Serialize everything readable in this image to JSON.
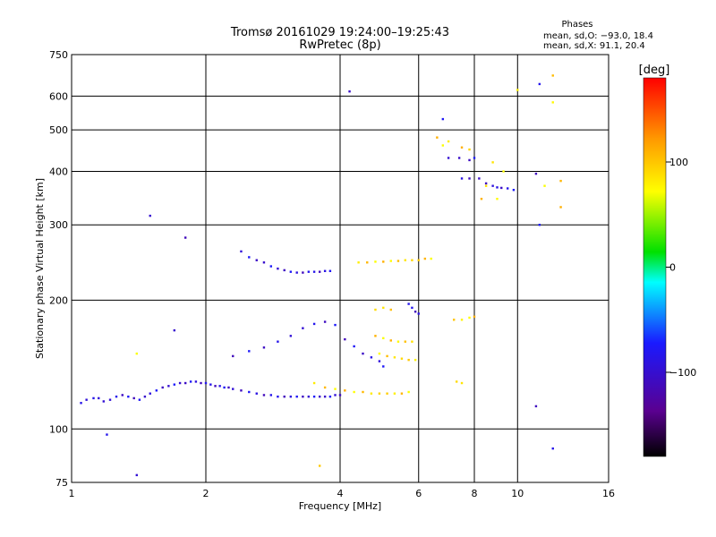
{
  "chart_data": {
    "type": "scatter",
    "title": "Tromsø 20161029 19:24:00–19:25:43",
    "subtitle": "RwPretec (8p)",
    "stats_title": "Phases",
    "stats_lines": [
      "mean, sd,O: −93.0, 18.4",
      "mean, sd,X:  91.1, 20.4"
    ],
    "xlabel": "Frequency [MHz]",
    "ylabel": "Stationary phase Virtual Height [km]",
    "x_scale": "log",
    "y_scale": "log",
    "xlim": [
      1,
      16
    ],
    "ylim": [
      75,
      750
    ],
    "xticks": [
      1,
      2,
      4,
      6,
      8,
      10,
      16
    ],
    "xtick_labels": [
      "1",
      "2",
      "4",
      "6",
      "8",
      "10",
      "16"
    ],
    "yticks": [
      75,
      100,
      200,
      300,
      400,
      500,
      600,
      750
    ],
    "ytick_labels": [
      "75",
      "100",
      "200",
      "300",
      "400",
      "500",
      "600",
      "750"
    ],
    "grid": true,
    "colorbar": {
      "label": "[deg]",
      "range": [
        -180,
        180
      ],
      "ticks": [
        100,
        0,
        -100
      ],
      "tick_labels": [
        "100",
        "0",
        "−100"
      ],
      "colormap": "rainbow",
      "stops": [
        "#000000",
        "#5a0090",
        "#1a1aff",
        "#00ffff",
        "#00e000",
        "#ffff00",
        "#ff9800",
        "#ff0000"
      ]
    },
    "series": [
      {
        "name": "O",
        "phase_mean": -93.0,
        "phase_sd": 18.4,
        "points": [
          [
            1.05,
            115
          ],
          [
            1.08,
            117
          ],
          [
            1.12,
            118
          ],
          [
            1.15,
            118
          ],
          [
            1.18,
            116
          ],
          [
            1.22,
            117
          ],
          [
            1.26,
            119
          ],
          [
            1.3,
            120
          ],
          [
            1.34,
            119
          ],
          [
            1.38,
            118
          ],
          [
            1.42,
            117
          ],
          [
            1.46,
            119
          ],
          [
            1.5,
            121
          ],
          [
            1.55,
            123
          ],
          [
            1.6,
            125
          ],
          [
            1.65,
            126
          ],
          [
            1.7,
            127
          ],
          [
            1.75,
            128
          ],
          [
            1.8,
            128
          ],
          [
            1.85,
            129
          ],
          [
            1.9,
            129
          ],
          [
            1.95,
            128
          ],
          [
            2.0,
            128
          ],
          [
            2.05,
            127
          ],
          [
            2.1,
            126
          ],
          [
            2.15,
            126
          ],
          [
            2.2,
            125
          ],
          [
            2.25,
            125
          ],
          [
            2.3,
            124
          ],
          [
            2.4,
            123
          ],
          [
            2.5,
            122
          ],
          [
            2.6,
            121
          ],
          [
            2.7,
            120
          ],
          [
            2.8,
            120
          ],
          [
            2.9,
            119
          ],
          [
            3.0,
            119
          ],
          [
            3.1,
            119
          ],
          [
            3.2,
            119
          ],
          [
            3.3,
            119
          ],
          [
            3.4,
            119
          ],
          [
            3.5,
            119
          ],
          [
            3.6,
            119
          ],
          [
            3.7,
            119
          ],
          [
            3.8,
            119
          ],
          [
            3.9,
            120
          ],
          [
            4.0,
            120
          ],
          [
            2.4,
            260
          ],
          [
            2.5,
            252
          ],
          [
            2.6,
            248
          ],
          [
            2.7,
            245
          ],
          [
            2.8,
            240
          ],
          [
            2.9,
            237
          ],
          [
            3.0,
            235
          ],
          [
            3.1,
            233
          ],
          [
            3.2,
            232
          ],
          [
            3.3,
            232
          ],
          [
            3.4,
            233
          ],
          [
            3.5,
            233
          ],
          [
            3.6,
            233
          ],
          [
            3.7,
            234
          ],
          [
            3.8,
            234
          ],
          [
            2.3,
            148
          ],
          [
            2.5,
            152
          ],
          [
            2.7,
            155
          ],
          [
            2.9,
            160
          ],
          [
            3.1,
            165
          ],
          [
            3.3,
            172
          ],
          [
            3.5,
            176
          ],
          [
            3.7,
            178
          ],
          [
            3.9,
            175
          ],
          [
            4.1,
            162
          ],
          [
            4.3,
            156
          ],
          [
            4.5,
            150
          ],
          [
            4.7,
            147
          ],
          [
            4.9,
            144
          ],
          [
            5.0,
            140
          ],
          [
            5.7,
            196
          ],
          [
            5.8,
            192
          ],
          [
            5.9,
            188
          ],
          [
            6.0,
            186
          ],
          [
            7.0,
            430
          ],
          [
            7.4,
            430
          ],
          [
            7.8,
            425
          ],
          [
            8.0,
            430
          ],
          [
            7.5,
            385
          ],
          [
            7.8,
            385
          ],
          [
            8.2,
            385
          ],
          [
            8.5,
            375
          ],
          [
            8.8,
            370
          ],
          [
            9.0,
            367
          ],
          [
            9.2,
            366
          ],
          [
            9.5,
            365
          ],
          [
            9.8,
            362
          ],
          [
            1.5,
            315
          ],
          [
            1.8,
            280
          ],
          [
            1.7,
            170
          ],
          [
            1.2,
            97
          ],
          [
            1.4,
            78
          ],
          [
            4.2,
            615
          ],
          [
            6.8,
            530
          ],
          [
            11.0,
            395
          ],
          [
            11.2,
            300
          ],
          [
            11.0,
            113
          ],
          [
            11.2,
            640
          ],
          [
            12.0,
            90
          ]
        ]
      },
      {
        "name": "X",
        "phase_mean": 91.1,
        "phase_sd": 20.4,
        "points": [
          [
            3.5,
            128
          ],
          [
            3.7,
            125
          ],
          [
            3.9,
            124
          ],
          [
            4.1,
            123
          ],
          [
            4.3,
            122
          ],
          [
            4.5,
            122
          ],
          [
            4.7,
            121
          ],
          [
            4.9,
            121
          ],
          [
            5.1,
            121
          ],
          [
            5.3,
            121
          ],
          [
            5.5,
            121
          ],
          [
            5.7,
            122
          ],
          [
            4.4,
            245
          ],
          [
            4.6,
            245
          ],
          [
            4.8,
            246
          ],
          [
            5.0,
            246
          ],
          [
            5.2,
            247
          ],
          [
            5.4,
            247
          ],
          [
            5.6,
            248
          ],
          [
            5.8,
            248
          ],
          [
            6.0,
            248
          ],
          [
            4.8,
            165
          ],
          [
            5.0,
            163
          ],
          [
            5.2,
            161
          ],
          [
            5.4,
            160
          ],
          [
            5.6,
            160
          ],
          [
            5.8,
            160
          ],
          [
            4.9,
            150
          ],
          [
            5.1,
            148
          ],
          [
            5.3,
            147
          ],
          [
            5.5,
            146
          ],
          [
            5.7,
            145
          ],
          [
            5.9,
            145
          ],
          [
            4.8,
            190
          ],
          [
            5.0,
            192
          ],
          [
            5.2,
            190
          ],
          [
            7.2,
            180
          ],
          [
            7.5,
            180
          ],
          [
            7.8,
            182
          ],
          [
            8.0,
            183
          ],
          [
            8.5,
            370
          ],
          [
            7.0,
            470
          ],
          [
            7.5,
            455
          ],
          [
            7.8,
            450
          ],
          [
            6.2,
            250
          ],
          [
            6.4,
            250
          ],
          [
            7.3,
            129
          ],
          [
            7.5,
            128
          ],
          [
            3.6,
            82
          ],
          [
            1.4,
            150
          ],
          [
            10.0,
            620
          ],
          [
            12.0,
            580
          ],
          [
            12.5,
            380
          ],
          [
            11.5,
            370
          ],
          [
            12.5,
            330
          ],
          [
            12.0,
            670
          ],
          [
            9.0,
            345
          ],
          [
            8.3,
            345
          ],
          [
            9.3,
            400
          ],
          [
            8.8,
            420
          ],
          [
            6.6,
            480
          ],
          [
            6.8,
            460
          ]
        ]
      }
    ]
  }
}
